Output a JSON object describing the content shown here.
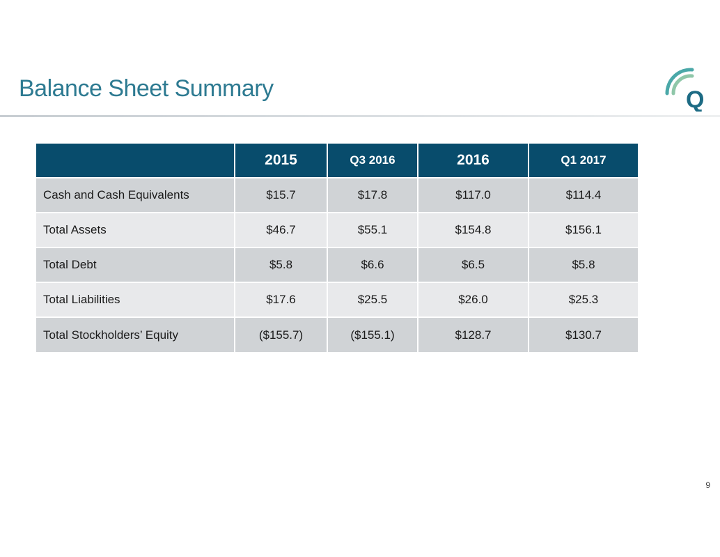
{
  "slide": {
    "title": "Balance Sheet Summary",
    "page_number": "9"
  },
  "logo": {
    "letter": "Q",
    "colors": {
      "arc_inner": "#8fc7a9",
      "arc_outer": "#4aa8a8",
      "letter": "#1d6b84"
    }
  },
  "colors": {
    "title": "#2d7a91",
    "header_bg": "#084c6c",
    "row_dark": "#d0d3d6",
    "row_light": "#e8e9eb"
  },
  "table": {
    "headers": [
      "",
      "2015",
      "Q3 2016",
      "2016",
      "Q1 2017"
    ],
    "rows": [
      {
        "label": "Cash and Cash Equivalents",
        "values": [
          "$15.7",
          "$17.8",
          "$117.0",
          "$114.4"
        ]
      },
      {
        "label": "Total Assets",
        "values": [
          "$46.7",
          "$55.1",
          "$154.8",
          "$156.1"
        ]
      },
      {
        "label": "Total Debt",
        "values": [
          "$5.8",
          "$6.6",
          "$6.5",
          "$5.8"
        ]
      },
      {
        "label": "Total Liabilities",
        "values": [
          "$17.6",
          "$25.5",
          "$26.0",
          "$25.3"
        ]
      },
      {
        "label": "Total Stockholders’ Equity",
        "values": [
          "($155.7)",
          "($155.1)",
          "$128.7",
          "$130.7"
        ]
      }
    ]
  }
}
